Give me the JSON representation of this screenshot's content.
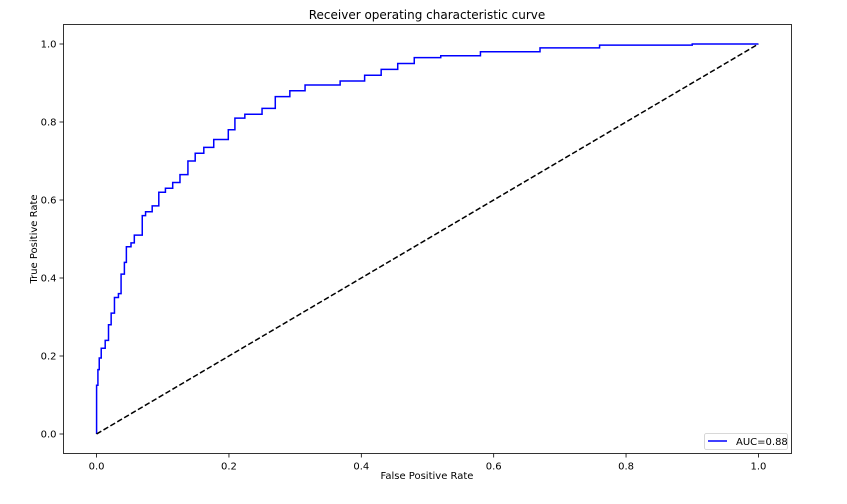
{
  "chart_data": {
    "type": "line",
    "title": "Receiver operating characteristic curve",
    "xlabel": "False Positive Rate",
    "ylabel": "True Positive Rate",
    "xlim": [
      -0.05,
      1.05
    ],
    "ylim": [
      -0.05,
      1.05
    ],
    "xticks": [
      "0.0",
      "0.2",
      "0.4",
      "0.6",
      "0.8",
      "1.0"
    ],
    "yticks": [
      "0.0",
      "0.2",
      "0.4",
      "0.6",
      "0.8",
      "1.0"
    ],
    "grid": false,
    "legend_position": "lower-right",
    "series": [
      {
        "name": "AUC=0.88",
        "color": "#0000ff",
        "style": "solid",
        "x": [
          0,
          0,
          0.002,
          0.004,
          0.007,
          0.013,
          0.018,
          0.022,
          0.027,
          0.033,
          0.037,
          0.042,
          0.045,
          0.052,
          0.057,
          0.064,
          0.069,
          0.074,
          0.084,
          0.094,
          0.104,
          0.115,
          0.126,
          0.138,
          0.149,
          0.162,
          0.177,
          0.199,
          0.209,
          0.224,
          0.25,
          0.27,
          0.292,
          0.315,
          0.368,
          0.405,
          0.43,
          0.455,
          0.48,
          0.52,
          0.58,
          0.67,
          0.76,
          0.9,
          1.0
        ],
        "y": [
          0,
          0.125,
          0.165,
          0.195,
          0.22,
          0.24,
          0.28,
          0.31,
          0.35,
          0.36,
          0.41,
          0.44,
          0.48,
          0.49,
          0.51,
          0.51,
          0.56,
          0.57,
          0.585,
          0.62,
          0.63,
          0.645,
          0.665,
          0.7,
          0.72,
          0.735,
          0.755,
          0.78,
          0.81,
          0.82,
          0.835,
          0.865,
          0.88,
          0.895,
          0.905,
          0.92,
          0.935,
          0.95,
          0.965,
          0.97,
          0.98,
          0.99,
          0.997,
          1.0,
          1.0
        ]
      },
      {
        "color": "#000000",
        "style": "dashed",
        "x": [
          0,
          1
        ],
        "y": [
          0,
          1
        ]
      }
    ]
  }
}
